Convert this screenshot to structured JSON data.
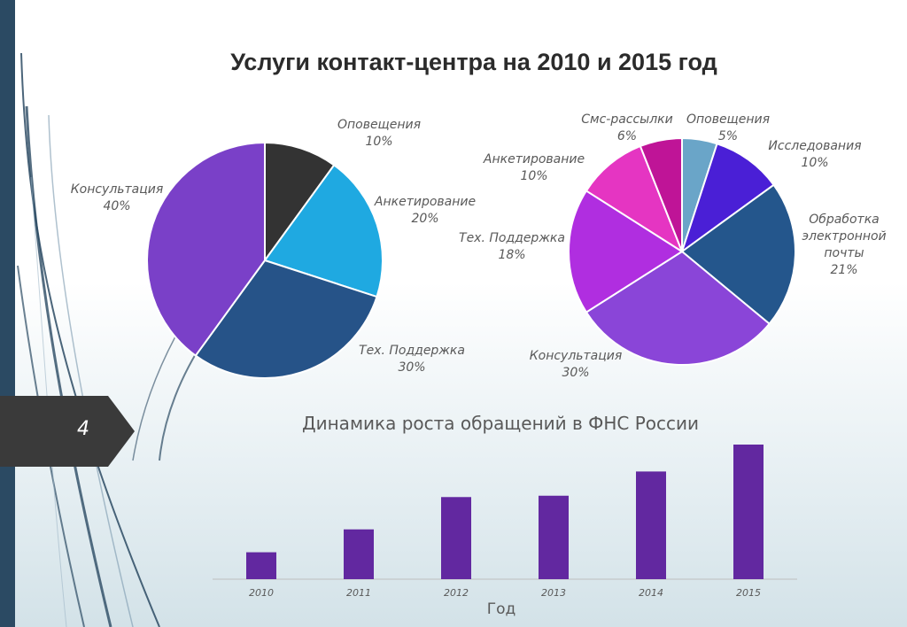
{
  "slide": {
    "number": "4",
    "title": "Услуги контакт-центра на 2010 и 2015 год",
    "accent_color": "#2b4a63",
    "tab_color": "#3a3a3a"
  },
  "chart_data": [
    {
      "type": "pie",
      "title": "",
      "slices": [
        {
          "label": "Оповещения",
          "value": 10,
          "value_label": "10%",
          "color": "#333333"
        },
        {
          "label": "Анкетирование",
          "value": 20,
          "value_label": "20%",
          "color": "#1fa9e1"
        },
        {
          "label": "Тех. Поддержка",
          "value": 30,
          "value_label": "30%",
          "color": "#265388"
        },
        {
          "label": "Консультация",
          "value": 40,
          "value_label": "40%",
          "color": "#7a40c8"
        }
      ]
    },
    {
      "type": "pie",
      "title": "",
      "slices": [
        {
          "label": "Оповещения",
          "value": 5,
          "value_label": "5%",
          "color": "#6aa5c8"
        },
        {
          "label": "Исследования",
          "value": 10,
          "value_label": "10%",
          "color": "#4a1fd6"
        },
        {
          "label": "Обработка электронной почты",
          "value": 21,
          "value_label": "21%",
          "color": "#24568c"
        },
        {
          "label": "Консультация",
          "value": 30,
          "value_label": "30%",
          "color": "#8a45d8"
        },
        {
          "label": "Тех. Поддержка",
          "value": 18,
          "value_label": "18%",
          "color": "#b02ee0"
        },
        {
          "label": "Анкетирование",
          "value": 10,
          "value_label": "10%",
          "color": "#e535c2"
        },
        {
          "label": "Смс-рассылки",
          "value": 6,
          "value_label": "6%",
          "color": "#bf1497"
        }
      ]
    },
    {
      "type": "bar",
      "title": "Динамика роста обращений в ФНС России",
      "xlabel": "Год",
      "ylabel": "",
      "categories": [
        "2010",
        "2011",
        "2012",
        "2013",
        "2014",
        "2015"
      ],
      "values": [
        20,
        37,
        61,
        62,
        80,
        100
      ],
      "ylim": [
        0,
        100
      ],
      "bar_color": "#6228a0",
      "grid": false
    }
  ]
}
